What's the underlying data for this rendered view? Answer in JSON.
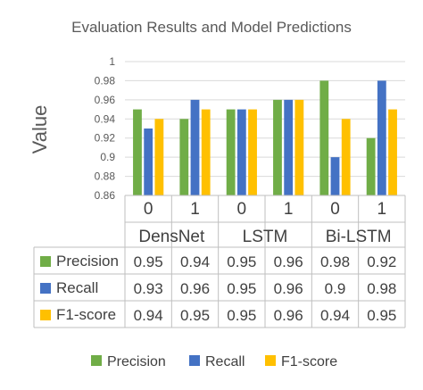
{
  "chart_data": {
    "type": "bar",
    "title": "Evaluation Results and Model Predictions",
    "ylabel": "Value",
    "ylim": [
      0.86,
      1.0
    ],
    "y_ticks": [
      "0.86",
      "0.88",
      "0.9",
      "0.92",
      "0.94",
      "0.96",
      "0.98",
      "1"
    ],
    "groups": [
      {
        "name": "DensNet",
        "categories": [
          "0",
          "1"
        ]
      },
      {
        "name": "LSTM",
        "categories": [
          "0",
          "1"
        ]
      },
      {
        "name": "Bi-LSTM",
        "categories": [
          "0",
          "1"
        ]
      }
    ],
    "categories": [
      "0",
      "1",
      "0",
      "1",
      "0",
      "1"
    ],
    "series": [
      {
        "name": "Precision",
        "color": "#70ad47",
        "values": [
          0.95,
          0.94,
          0.95,
          0.96,
          0.98,
          0.92
        ],
        "labels": [
          "0.95",
          "0.94",
          "0.95",
          "0.96",
          "0.98",
          "0.92"
        ]
      },
      {
        "name": "Recall",
        "color": "#4472c4",
        "values": [
          0.93,
          0.96,
          0.95,
          0.96,
          0.9,
          0.98
        ],
        "labels": [
          "0.93",
          "0.96",
          "0.95",
          "0.96",
          "0.9",
          "0.98"
        ]
      },
      {
        "name": "F1-score",
        "color": "#ffc000",
        "values": [
          0.94,
          0.95,
          0.95,
          0.96,
          0.94,
          0.95
        ],
        "labels": [
          "0.94",
          "0.95",
          "0.95",
          "0.96",
          "0.94",
          "0.95"
        ]
      }
    ],
    "grid": true,
    "legend_position": "bottom",
    "data_table": true
  }
}
